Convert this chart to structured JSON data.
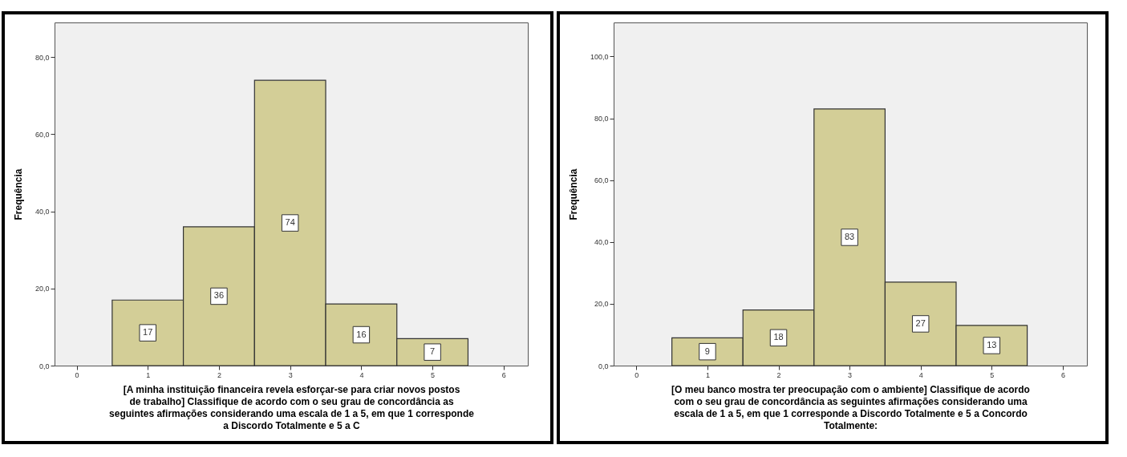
{
  "chart_data": [
    {
      "type": "histogram",
      "xlabel": "[A minha instituição financeira revela esforçar-se para criar novos postos de trabalho] Classifique de acordo com o seu grau de concordância as seguintes afirmações considerando uma escala de 1 a 5, em que 1 corresponde a Discordo Totalmente e 5 a C",
      "ylabel": "Frequência",
      "bins": [
        0.5,
        1.5,
        2.5,
        3.5,
        4.5,
        5.5
      ],
      "values": [
        17,
        36,
        74,
        16,
        7
      ],
      "color": "#d3ce97",
      "data_labels": true,
      "grid": false,
      "xlim": [
        -0.31,
        6.34
      ],
      "xticks": [
        0,
        1,
        2,
        3,
        4,
        5,
        6
      ],
      "ylim": [
        0,
        89
      ],
      "yticks": [
        {
          "value": 0,
          "label": "0,0"
        },
        {
          "value": 20,
          "label": "20,0"
        },
        {
          "value": 40,
          "label": "40,0"
        },
        {
          "value": 60,
          "label": "60,0"
        },
        {
          "value": 80,
          "label": "80,0"
        }
      ]
    },
    {
      "type": "histogram",
      "xlabel": "[O meu banco mostra ter preocupação com o ambiente] Classifique de acordo com o seu grau de concordância as seguintes afirmações considerando uma escala de 1 a 5, em que 1 corresponde a Discordo Totalmente e 5 a Concordo Totalmente:",
      "ylabel": "Frequência",
      "bins": [
        0.5,
        1.5,
        2.5,
        3.5,
        4.5,
        5.5
      ],
      "values": [
        9,
        18,
        83,
        27,
        13
      ],
      "color": "#d3ce97",
      "data_labels": true,
      "grid": false,
      "xlim": [
        -0.32,
        6.34
      ],
      "xticks": [
        0,
        1,
        2,
        3,
        4,
        5,
        6
      ],
      "ylim": [
        0,
        111
      ],
      "yticks": [
        {
          "value": 0,
          "label": "0,0"
        },
        {
          "value": 20,
          "label": "20,0"
        },
        {
          "value": 40,
          "label": "40,0"
        },
        {
          "value": 60,
          "label": "60,0"
        },
        {
          "value": 80,
          "label": "80,0"
        },
        {
          "value": 100,
          "label": "100,0"
        }
      ]
    }
  ]
}
